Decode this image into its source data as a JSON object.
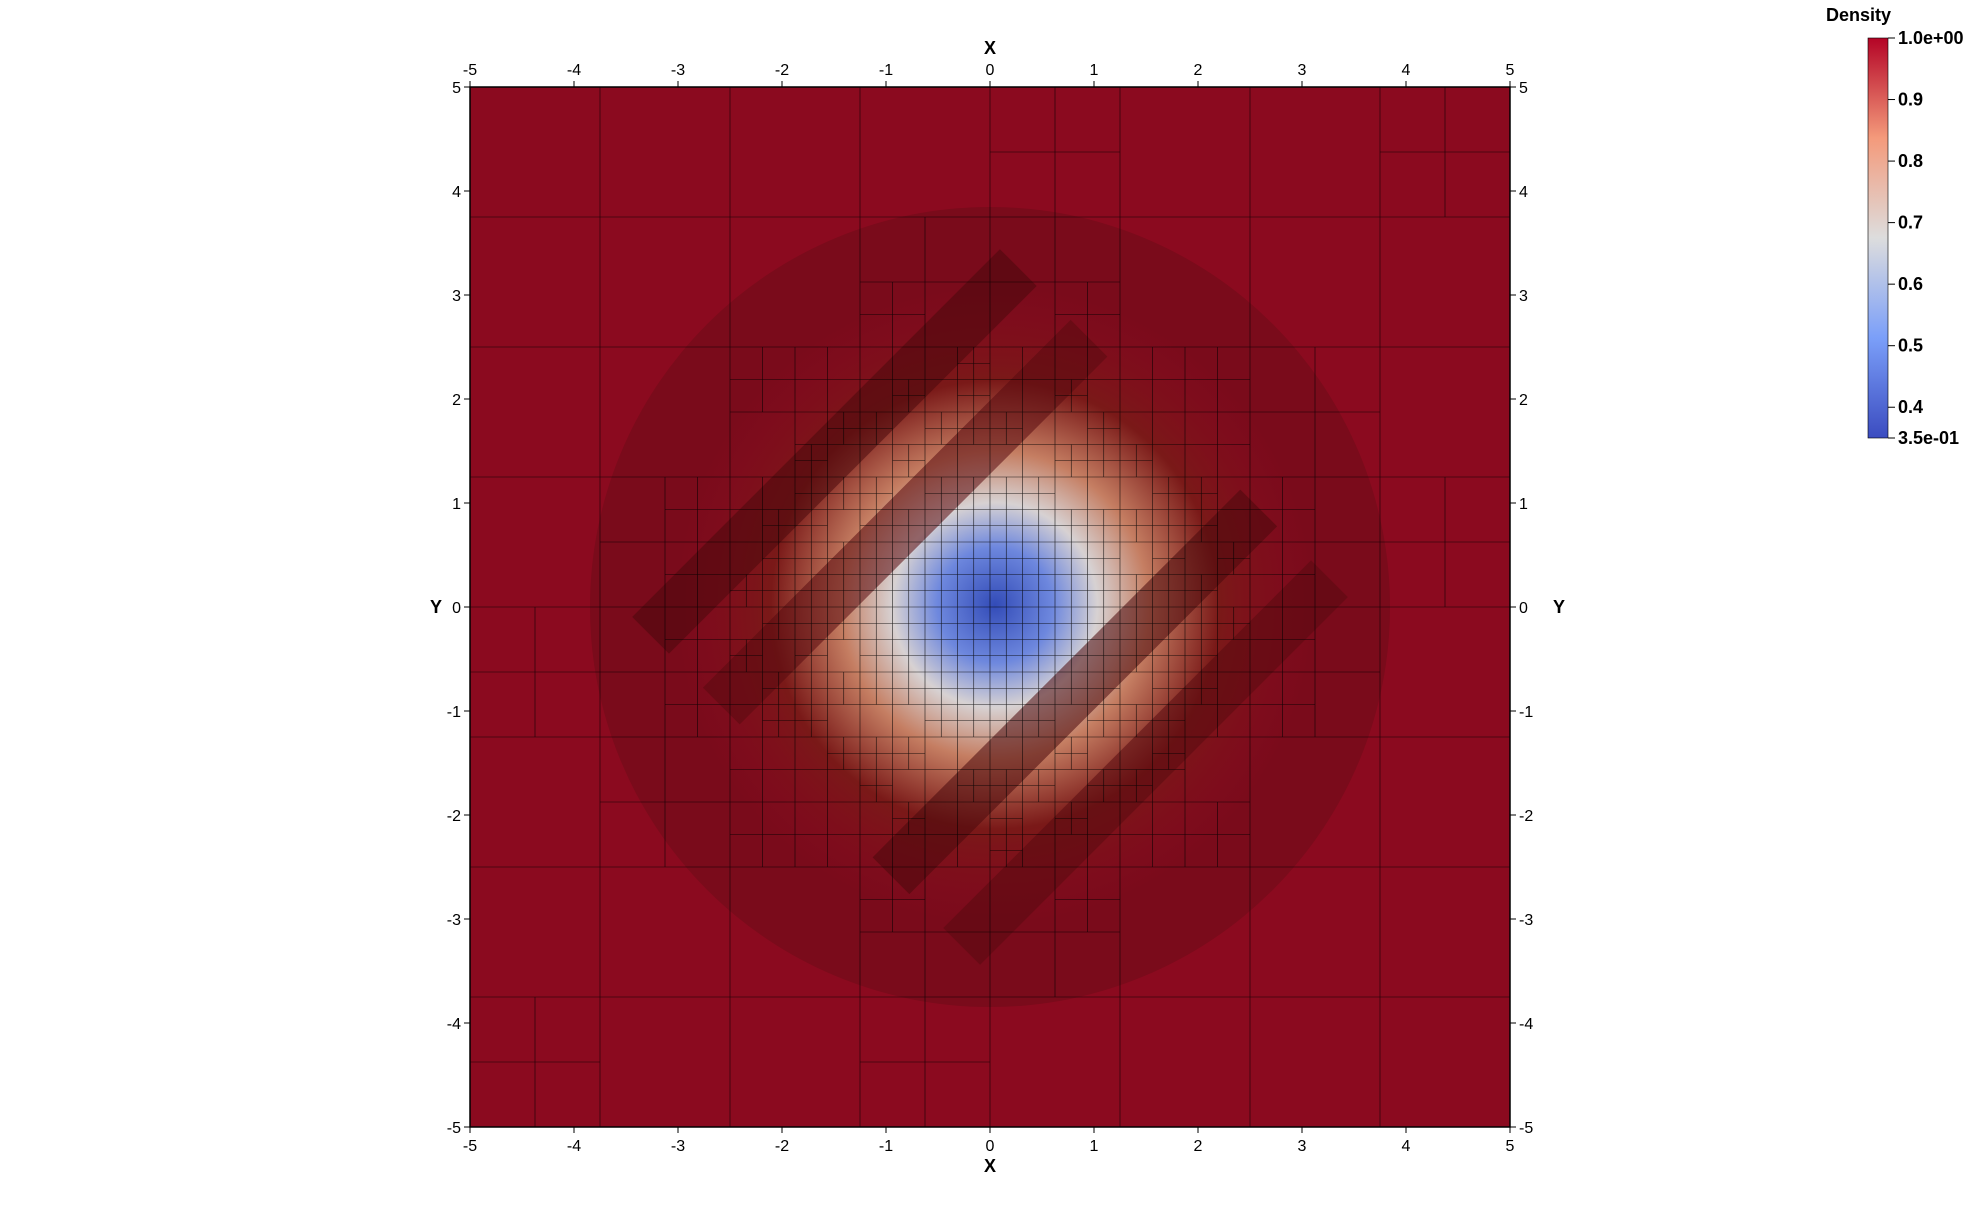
{
  "chart_data": {
    "type": "heatmap",
    "title": "",
    "xlabel": "X",
    "ylabel": "Y",
    "xlim": [
      -5,
      5
    ],
    "ylim": [
      -5,
      5
    ],
    "xticks": [
      "-5",
      "-4",
      "-3",
      "-2",
      "-1",
      "0",
      "1",
      "2",
      "3",
      "4",
      "5"
    ],
    "yticks": [
      "5",
      "4",
      "3",
      "2",
      "1",
      "0",
      "-1",
      "-2",
      "-3",
      "-4",
      "-5"
    ],
    "grid": "adaptive mesh (AMR quadtree cells outlined in black)",
    "field": {
      "name": "Density",
      "min": 0.35,
      "max": 1.0,
      "center": [
        0,
        0
      ],
      "min_value_at_center": 0.35,
      "ambient_value": 1.0,
      "description_shape": "radial low-density core near origin, rising to 1.0 beyond r≈2.5, diagonal banding at ±45°"
    },
    "colorbar": {
      "title": "Density",
      "colormap": "coolwarm",
      "placement": "top-right",
      "labels": [
        "1.0e+00",
        "0.9",
        "0.8",
        "0.7",
        "0.6",
        "0.5",
        "0.4",
        "3.5e-01"
      ],
      "label_values": [
        1.0,
        0.9,
        0.8,
        0.7,
        0.6,
        0.5,
        0.4,
        0.35
      ],
      "color_low": "#3b4cc0",
      "color_mid": "#dddddd",
      "color_high": "#b40426",
      "color_ambient": "#8b0a1f"
    }
  }
}
